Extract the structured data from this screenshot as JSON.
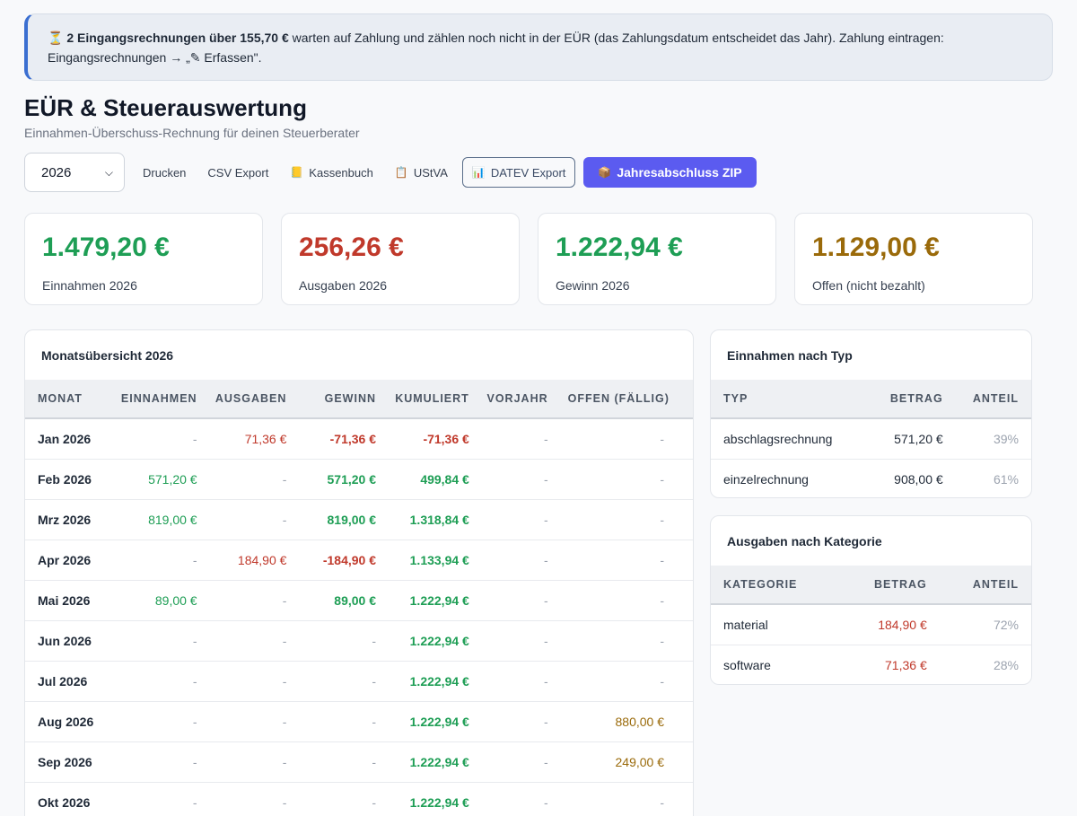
{
  "notice": {
    "icon": "⏳",
    "bold_text": "2 Eingangsrechnungen über 155,70 €",
    "text": " warten auf Zahlung und zählen noch nicht in der EÜR (das Zahlungsdatum entscheidet das Jahr). Zahlung eintragen: Eingangsrechnungen → „✎ Erfassen\"."
  },
  "header": {
    "title": "EÜR & Steuerauswertung",
    "subtitle": "Einnahmen-Überschuss-Rechnung für deinen Steuerberater"
  },
  "toolbar": {
    "year": "2026",
    "print_label": "Drucken",
    "csv_label": "CSV Export",
    "cashbook_icon": "📒",
    "cashbook_label": "Kassenbuch",
    "ustva_icon": "📋",
    "ustva_label": "UStVA",
    "datev_icon": "📊",
    "datev_label": "DATEV Export",
    "zip_icon": "📦",
    "zip_label": "Jahresabschluss ZIP"
  },
  "kpis": [
    {
      "value": "1.479,20 €",
      "label": "Einnahmen 2026",
      "color": "#1e9e55"
    },
    {
      "value": "256,26 €",
      "label": "Ausgaben 2026",
      "color": "#c0392b"
    },
    {
      "value": "1.222,94 €",
      "label": "Gewinn 2026",
      "color": "#1e9e55"
    },
    {
      "value": "1.129,00 €",
      "label": "Offen (nicht bezahlt)",
      "color": "#9a6a0a"
    }
  ],
  "monthly": {
    "title": "Monatsübersicht 2026",
    "columns": [
      "Monat",
      "Einnahmen",
      "Ausgaben",
      "Gewinn",
      "Kumuliert",
      "Vorjahr",
      "Offen (fällig)"
    ],
    "rows": [
      [
        "Jan 2026",
        "-",
        "71,36 €",
        "-71,36 €",
        "-71,36 €",
        "-",
        "-"
      ],
      [
        "Feb 2026",
        "571,20 €",
        "-",
        "571,20 €",
        "499,84 €",
        "-",
        "-"
      ],
      [
        "Mrz 2026",
        "819,00 €",
        "-",
        "819,00 €",
        "1.318,84 €",
        "-",
        "-"
      ],
      [
        "Apr 2026",
        "-",
        "184,90 €",
        "-184,90 €",
        "1.133,94 €",
        "-",
        "-"
      ],
      [
        "Mai 2026",
        "89,00 €",
        "-",
        "89,00 €",
        "1.222,94 €",
        "-",
        "-"
      ],
      [
        "Jun 2026",
        "-",
        "-",
        "-",
        "1.222,94 €",
        "-",
        "-"
      ],
      [
        "Jul 2026",
        "-",
        "-",
        "-",
        "1.222,94 €",
        "-",
        "-"
      ],
      [
        "Aug 2026",
        "-",
        "-",
        "-",
        "1.222,94 €",
        "-",
        "880,00 €"
      ],
      [
        "Sep 2026",
        "-",
        "-",
        "-",
        "1.222,94 €",
        "-",
        "249,00 €"
      ],
      [
        "Okt 2026",
        "-",
        "-",
        "-",
        "1.222,94 €",
        "-",
        "-"
      ]
    ]
  },
  "income_by_type": {
    "title": "Einnahmen nach Typ",
    "columns": [
      "Typ",
      "Betrag",
      "Anteil"
    ],
    "rows": [
      [
        "abschlagsrechnung",
        "571,20 €",
        "39%"
      ],
      [
        "einzelrechnung",
        "908,00 €",
        "61%"
      ]
    ]
  },
  "expenses_by_category": {
    "title": "Ausgaben nach Kategorie",
    "columns": [
      "Kategorie",
      "Betrag",
      "Anteil"
    ],
    "rows": [
      [
        "material",
        "184,90 €",
        "72%"
      ],
      [
        "software",
        "71,36 €",
        "28%"
      ]
    ]
  }
}
